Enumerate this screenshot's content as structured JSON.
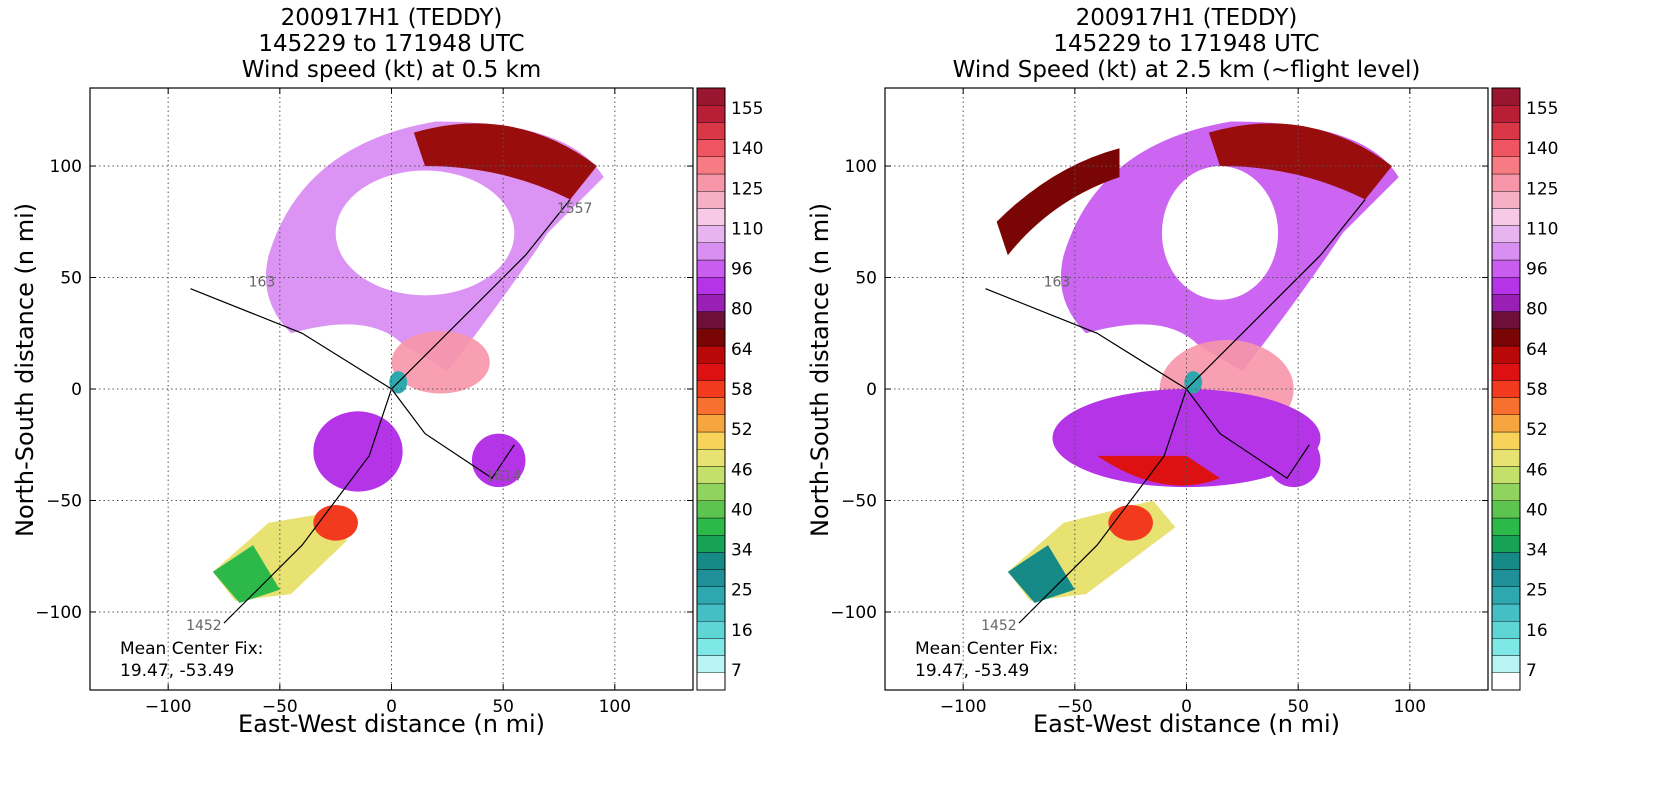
{
  "panels": [
    {
      "title_line1": "200917H1 (TEDDY)",
      "title_line2": "145229 to 171948 UTC",
      "title_line3": "Wind speed (kt) at 0.5 km",
      "xlabel": "East-West distance (n mi)",
      "ylabel": "North-South distance (n mi)",
      "center_fix_label": "Mean Center Fix:",
      "center_fix_value": "19.47, -53.49",
      "track_labels": [
        {
          "text": "1452",
          "x": -84,
          "y": -108
        },
        {
          "text": "1557",
          "x": 82,
          "y": 79
        },
        {
          "text": "1614",
          "x": 50,
          "y": -41
        },
        {
          "text": "163",
          "x": -58,
          "y": 46
        }
      ]
    },
    {
      "title_line1": "200917H1 (TEDDY)",
      "title_line2": "145229 to 171948 UTC",
      "title_line3": "Wind Speed (kt) at 2.5 km (~flight level)",
      "xlabel": "East-West distance (n mi)",
      "ylabel": "North-South distance (n mi)",
      "center_fix_label": "Mean Center Fix:",
      "center_fix_value": "19.47, -53.49",
      "track_labels": [
        {
          "text": "1452",
          "x": -84,
          "y": -108
        },
        {
          "text": "163",
          "x": -58,
          "y": 46
        }
      ]
    }
  ],
  "chart_data": [
    {
      "type": "heatmap",
      "title": "200917H1 (TEDDY) 145229 to 171948 UTC Wind speed (kt) at 0.5 km",
      "xlabel": "East-West distance (n mi)",
      "ylabel": "North-South distance (n mi)",
      "xlim": [
        -135,
        135
      ],
      "ylim": [
        -135,
        135
      ],
      "xticks": [
        -100,
        -50,
        0,
        50,
        100
      ],
      "yticks": [
        -100,
        -50,
        0,
        50,
        100
      ],
      "grid": true,
      "colorbar_ticks": [
        7,
        16,
        25,
        34,
        40,
        46,
        52,
        58,
        64,
        80,
        96,
        110,
        125,
        140,
        155
      ],
      "track": [
        [
          -75,
          -105
        ],
        [
          -40,
          -70
        ],
        [
          -10,
          -30
        ],
        [
          0,
          0
        ],
        [
          20,
          20
        ],
        [
          60,
          60
        ],
        [
          80,
          85
        ]
      ],
      "track2": [
        [
          -90,
          45
        ],
        [
          -40,
          25
        ],
        [
          0,
          0
        ],
        [
          15,
          -20
        ],
        [
          45,
          -40
        ],
        [
          55,
          -25
        ]
      ]
    },
    {
      "type": "heatmap",
      "title": "200917H1 (TEDDY) 145229 to 171948 UTC Wind Speed (kt) at 2.5 km (~flight level)",
      "xlabel": "East-West distance (n mi)",
      "ylabel": "North-South distance (n mi)",
      "xlim": [
        -135,
        135
      ],
      "ylim": [
        -135,
        135
      ],
      "xticks": [
        -100,
        -50,
        0,
        50,
        100
      ],
      "yticks": [
        -100,
        -50,
        0,
        50,
        100
      ],
      "grid": true,
      "colorbar_ticks": [
        7,
        16,
        25,
        34,
        40,
        46,
        52,
        58,
        64,
        80,
        96,
        110,
        125,
        140,
        155
      ],
      "track": [
        [
          -75,
          -105
        ],
        [
          -40,
          -70
        ],
        [
          -10,
          -30
        ],
        [
          0,
          0
        ],
        [
          20,
          20
        ],
        [
          60,
          60
        ],
        [
          80,
          85
        ]
      ],
      "track2": [
        [
          -90,
          45
        ],
        [
          -40,
          25
        ],
        [
          0,
          0
        ],
        [
          15,
          -20
        ],
        [
          45,
          -40
        ],
        [
          55,
          -25
        ]
      ]
    }
  ],
  "colors": {
    "colorbar_bins": [
      "#ffffff",
      "#b8f5f3",
      "#7ee8e6",
      "#5fd6d6",
      "#45bfc4",
      "#2ea8ae",
      "#1f8f98",
      "#168a86",
      "#16a356",
      "#2db84a",
      "#5cc44f",
      "#8ed45f",
      "#c3e06a",
      "#e8e273",
      "#f7d35b",
      "#f7a53f",
      "#f7702d",
      "#f23a1e",
      "#dd1111",
      "#b80808",
      "#7a0505",
      "#6e0f3a",
      "#9a1fb5",
      "#b534e8",
      "#c95df0",
      "#d98ef2",
      "#e8b4f0",
      "#f7c9e6",
      "#f5b0c5",
      "#f796a8",
      "#f77b82",
      "#ef5560",
      "#d93646",
      "#b81f36",
      "#991530"
    ]
  }
}
